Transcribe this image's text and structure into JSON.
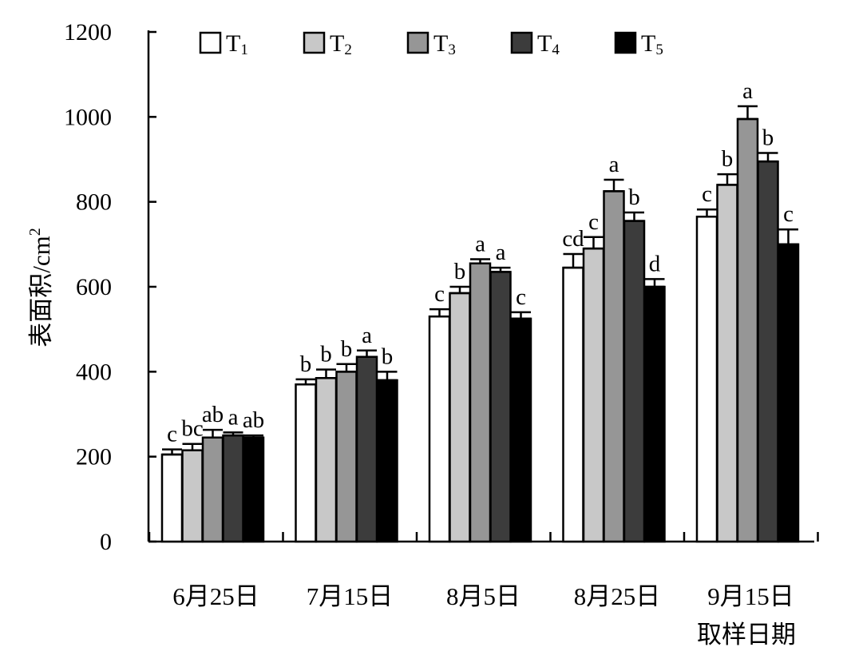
{
  "chart_data": {
    "type": "bar",
    "title": "",
    "ylabel_main": "表面积/cm",
    "ylabel_sup": "2",
    "xlabel": "取样日期",
    "ylim": [
      0,
      1200
    ],
    "yticks": [
      0,
      200,
      400,
      600,
      800,
      1000,
      1200
    ],
    "legend_position": "top",
    "categories": [
      "6月25日",
      "7月15日",
      "8月5日",
      "8月25日",
      "9月15日"
    ],
    "series": [
      {
        "name": "T",
        "sub": "1",
        "color": "#ffffff",
        "values": [
          205,
          370,
          530,
          645,
          765
        ],
        "errors": [
          12,
          12,
          17,
          32,
          17
        ],
        "labels": [
          "c",
          "b",
          "c",
          "cd",
          "c"
        ]
      },
      {
        "name": "T",
        "sub": "2",
        "color": "#c8c8c8",
        "values": [
          215,
          385,
          585,
          690,
          840
        ],
        "errors": [
          15,
          20,
          15,
          27,
          25
        ],
        "labels": [
          "bc",
          "b",
          "b",
          "c",
          "b"
        ]
      },
      {
        "name": "T",
        "sub": "3",
        "color": "#969696",
        "values": [
          245,
          400,
          655,
          825,
          995
        ],
        "errors": [
          18,
          18,
          10,
          27,
          30
        ],
        "labels": [
          "ab",
          "b",
          "a",
          "a",
          "a"
        ]
      },
      {
        "name": "T",
        "sub": "4",
        "color": "#3c3c3c",
        "values": [
          250,
          435,
          635,
          755,
          895
        ],
        "errors": [
          7,
          15,
          10,
          20,
          20
        ],
        "labels": [
          "a",
          "a",
          "a",
          "b",
          "b"
        ]
      },
      {
        "name": "T",
        "sub": "5",
        "color": "#000000",
        "values": [
          245,
          380,
          525,
          600,
          700
        ],
        "errors": [
          5,
          20,
          15,
          18,
          35
        ],
        "labels": [
          "ab",
          "b",
          "c",
          "d",
          "c"
        ]
      }
    ]
  }
}
